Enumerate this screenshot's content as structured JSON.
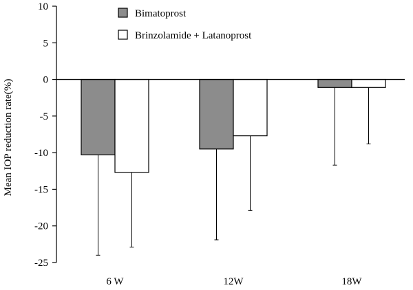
{
  "chart_data": {
    "type": "bar",
    "title": "",
    "xlabel": "",
    "ylabel": "Mean IOP reduction rate(%)",
    "ylim": [
      -25,
      10
    ],
    "yticks": [
      10,
      5,
      0,
      -5,
      -10,
      -15,
      -20,
      -25
    ],
    "categories": [
      "6 W",
      "12W",
      "18W"
    ],
    "series": [
      {
        "name": "Bimatoprost",
        "color": "#8c8c8c",
        "values": [
          -10.3,
          -9.5,
          -1.1
        ],
        "error_lower": [
          -24.0,
          -21.9,
          -11.7
        ]
      },
      {
        "name": "Brinzolamide + Latanoprost",
        "color": "#ffffff",
        "values": [
          -12.7,
          -7.7,
          -1.1
        ],
        "error_lower": [
          -22.9,
          -17.9,
          -8.8
        ]
      }
    ],
    "legend": "top-center",
    "grid": false,
    "error_bars": true
  }
}
